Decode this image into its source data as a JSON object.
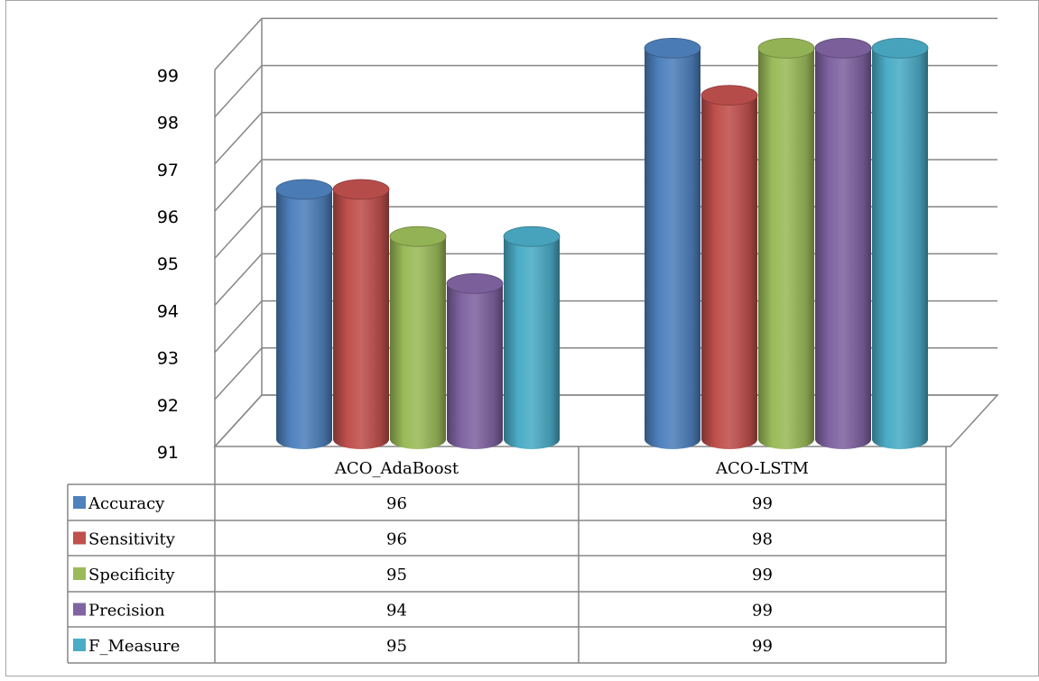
{
  "chart_data": {
    "type": "bar",
    "categories": [
      "ACO_AdaBoost",
      "ACO-LSTM"
    ],
    "series": [
      {
        "name": "Accuracy",
        "values": [
          96,
          99
        ],
        "color": "#4f81bd"
      },
      {
        "name": "Sensitivity",
        "values": [
          96,
          98
        ],
        "color": "#c0504d"
      },
      {
        "name": "Specificity",
        "values": [
          95,
          99
        ],
        "color": "#9bbb59"
      },
      {
        "name": "Precision",
        "values": [
          94,
          99
        ],
        "color": "#8064a2"
      },
      {
        "name": "F_Measure",
        "values": [
          95,
          99
        ],
        "color": "#4bacc6"
      }
    ],
    "ylim": [
      91,
      99
    ],
    "yticks": [
      "91",
      "92",
      "93",
      "94",
      "95",
      "96",
      "97",
      "98",
      "99"
    ],
    "grid": true,
    "style": "3d-cylinder",
    "data_table": true
  }
}
